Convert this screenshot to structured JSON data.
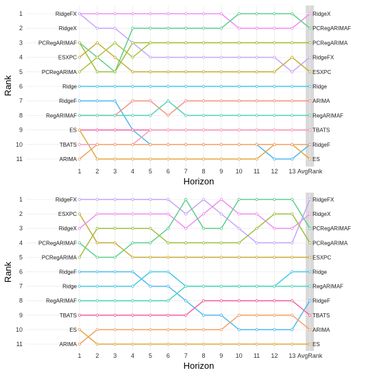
{
  "chart_data": [
    {
      "type": "line",
      "xlabel": "Horizon",
      "ylabel": "Rank",
      "x_tick_labels": [
        "1",
        "2",
        "3",
        "4",
        "5",
        "6",
        "7",
        "8",
        "9",
        "10",
        "11",
        "12",
        "13",
        "AvgRank"
      ],
      "y_tick_labels": [
        "1",
        "2",
        "3",
        "4",
        "5",
        "6",
        "7",
        "8",
        "9",
        "10",
        "11"
      ],
      "ylim": [
        1,
        11
      ],
      "y_reversed": true,
      "grid": true,
      "shaded_column": "AvgRank",
      "left_labels": [
        {
          "rank": 1,
          "text": "RidgeFX"
        },
        {
          "rank": 2,
          "text": "RidgeX"
        },
        {
          "rank": 3,
          "text": "PCRegARIMAF"
        },
        {
          "rank": 4,
          "text": "ESXPC"
        },
        {
          "rank": 5,
          "text": "PCRegARIMA"
        },
        {
          "rank": 6,
          "text": "Ridge"
        },
        {
          "rank": 7,
          "text": "RidgeF"
        },
        {
          "rank": 8,
          "text": "RegARIMAF"
        },
        {
          "rank": 9,
          "text": "ES"
        },
        {
          "rank": 10,
          "text": "TBATS"
        },
        {
          "rank": 11,
          "text": "ARIMA"
        }
      ],
      "right_labels": [
        {
          "rank": 1,
          "text": "RidgeX"
        },
        {
          "rank": 2,
          "text": "PCRegARIMAF"
        },
        {
          "rank": 3,
          "text": "PCRegARIMA"
        },
        {
          "rank": 4,
          "text": "RidgeFX"
        },
        {
          "rank": 5,
          "text": "ESXPC"
        },
        {
          "rank": 6,
          "text": "Ridge"
        },
        {
          "rank": 7,
          "text": "ARIMA"
        },
        {
          "rank": 8,
          "text": "RegARIMAF"
        },
        {
          "rank": 9,
          "text": "TBATS"
        },
        {
          "rank": 10,
          "text": "RidgeF"
        },
        {
          "rank": 11,
          "text": "ES"
        }
      ],
      "series": [
        {
          "values": [
            1,
            1,
            1,
            1,
            1,
            1,
            1,
            1,
            1,
            2,
            2,
            2,
            2,
            1
          ],
          "color": "#f08cf0"
        },
        {
          "values": [
            1,
            2,
            2,
            3,
            4,
            4,
            4,
            4,
            4,
            4,
            4,
            4,
            5,
            4
          ],
          "color": "#c6a4f6"
        },
        {
          "values": [
            3,
            4,
            5,
            2,
            2,
            2,
            2,
            2,
            2,
            1,
            1,
            1,
            1,
            2
          ],
          "color": "#5ccf8c"
        },
        {
          "values": [
            3,
            5,
            5,
            3,
            3,
            3,
            3,
            3,
            3,
            3,
            3,
            3,
            3,
            3
          ],
          "color": "#9bc03c"
        },
        {
          "values": [
            4,
            3,
            4,
            5,
            5,
            5,
            5,
            5,
            5,
            5,
            5,
            5,
            4,
            5
          ],
          "color": "#c7ab35"
        },
        {
          "values": [
            5,
            4,
            3,
            4,
            3,
            3,
            3,
            3,
            3,
            3,
            3,
            3,
            3,
            3
          ],
          "color": "#a8c23a"
        },
        {
          "values": [
            6,
            6,
            6,
            6,
            6,
            6,
            6,
            6,
            6,
            6,
            6,
            6,
            6,
            6
          ],
          "color": "#42c9e8"
        },
        {
          "values": [
            7,
            7,
            7,
            9,
            10,
            10,
            10,
            10,
            10,
            10,
            10,
            11,
            11,
            10
          ],
          "color": "#4db8f0"
        },
        {
          "values": [
            8,
            8,
            8,
            7,
            7,
            8,
            7,
            7,
            7,
            7,
            7,
            7,
            7,
            7
          ],
          "color": "#f49080"
        },
        {
          "values": [
            8,
            8,
            8,
            8,
            8,
            7,
            8,
            8,
            8,
            8,
            8,
            8,
            8,
            8
          ],
          "color": "#4ed3b4"
        },
        {
          "values": [
            9,
            9,
            9,
            9,
            9,
            9,
            9,
            9,
            9,
            9,
            9,
            9,
            9,
            9
          ],
          "color": "#f060a0"
        },
        {
          "values": [
            9,
            11,
            11,
            11,
            11,
            11,
            11,
            11,
            11,
            11,
            11,
            10,
            10,
            11
          ],
          "color": "#e2a640"
        },
        {
          "values": [
            10,
            10,
            10,
            10,
            9,
            9,
            9,
            9,
            9,
            9,
            9,
            9,
            9,
            9
          ],
          "color": "#f59ab8"
        },
        {
          "values": [
            11,
            10,
            10,
            10,
            10,
            10,
            10,
            10,
            10,
            10,
            10,
            10,
            10,
            10
          ],
          "color": "#f3a060"
        }
      ]
    },
    {
      "type": "line",
      "xlabel": "Horizon",
      "ylabel": "Rank",
      "x_tick_labels": [
        "1",
        "2",
        "3",
        "4",
        "5",
        "6",
        "7",
        "8",
        "9",
        "10",
        "11",
        "12",
        "13",
        "AvgRank"
      ],
      "y_tick_labels": [
        "1",
        "2",
        "3",
        "4",
        "5",
        "6",
        "7",
        "8",
        "9",
        "10",
        "11"
      ],
      "ylim": [
        1,
        11
      ],
      "y_reversed": true,
      "grid": true,
      "shaded_column": "AvgRank",
      "left_labels": [
        {
          "rank": 1,
          "text": "RidgeFX"
        },
        {
          "rank": 2,
          "text": "ESXPC"
        },
        {
          "rank": 3,
          "text": "RidgeX"
        },
        {
          "rank": 4,
          "text": "PCRegARIMAF"
        },
        {
          "rank": 5,
          "text": "PCRegARIMA"
        },
        {
          "rank": 6,
          "text": "RidgeF"
        },
        {
          "rank": 7,
          "text": "Ridge"
        },
        {
          "rank": 8,
          "text": "RegARIMAF"
        },
        {
          "rank": 9,
          "text": "TBATS"
        },
        {
          "rank": 10,
          "text": "ES"
        },
        {
          "rank": 11,
          "text": "ARIMA"
        }
      ],
      "right_labels": [
        {
          "rank": 1,
          "text": "RidgeFX"
        },
        {
          "rank": 2,
          "text": "RidgeX"
        },
        {
          "rank": 3,
          "text": "PCRegARIMAF"
        },
        {
          "rank": 4,
          "text": "PCRegARIMA"
        },
        {
          "rank": 5,
          "text": "ESXPC"
        },
        {
          "rank": 6,
          "text": "Ridge"
        },
        {
          "rank": 7,
          "text": "RegARIMAF"
        },
        {
          "rank": 8,
          "text": "RidgeF"
        },
        {
          "rank": 9,
          "text": "TBATS"
        },
        {
          "rank": 10,
          "text": "ARIMA"
        },
        {
          "rank": 11,
          "text": "ES"
        }
      ],
      "series": [
        {
          "values": [
            1,
            1,
            1,
            1,
            1,
            1,
            2,
            1,
            2,
            3,
            4,
            4,
            4,
            1
          ],
          "color": "#c6a4f6"
        },
        {
          "values": [
            2,
            4,
            4,
            5,
            5,
            5,
            5,
            5,
            5,
            5,
            5,
            5,
            5,
            5
          ],
          "color": "#c7ab35"
        },
        {
          "values": [
            3,
            2,
            2,
            2,
            2,
            2,
            3,
            2,
            1,
            2,
            2,
            3,
            3,
            2
          ],
          "color": "#f08cf0"
        },
        {
          "values": [
            4,
            5,
            5,
            4,
            4,
            3,
            1,
            3,
            3,
            1,
            1,
            1,
            1,
            3
          ],
          "color": "#5ccf8c"
        },
        {
          "values": [
            5,
            3,
            3,
            3,
            3,
            4,
            4,
            4,
            4,
            4,
            3,
            2,
            2,
            4
          ],
          "color": "#9bc03c"
        },
        {
          "values": [
            6,
            6,
            6,
            6,
            7,
            7,
            8,
            9,
            9,
            10,
            10,
            10,
            10,
            8
          ],
          "color": "#4db8f0"
        },
        {
          "values": [
            7,
            7,
            7,
            7,
            6,
            6,
            7,
            7,
            7,
            7,
            7,
            7,
            6,
            6
          ],
          "color": "#42c9e8"
        },
        {
          "values": [
            8,
            8,
            8,
            8,
            8,
            8,
            7,
            7,
            7,
            7,
            7,
            7,
            7,
            7
          ],
          "color": "#4ed3b4"
        },
        {
          "values": [
            9,
            9,
            9,
            9,
            9,
            9,
            9,
            8,
            8,
            8,
            8,
            8,
            8,
            9
          ],
          "color": "#f060a0"
        },
        {
          "values": [
            10,
            11,
            11,
            11,
            11,
            11,
            11,
            11,
            11,
            11,
            11,
            11,
            11,
            11
          ],
          "color": "#e2a640"
        },
        {
          "values": [
            11,
            10,
            10,
            10,
            10,
            10,
            10,
            10,
            10,
            9,
            9,
            9,
            9,
            10
          ],
          "color": "#f3a060"
        }
      ]
    }
  ]
}
